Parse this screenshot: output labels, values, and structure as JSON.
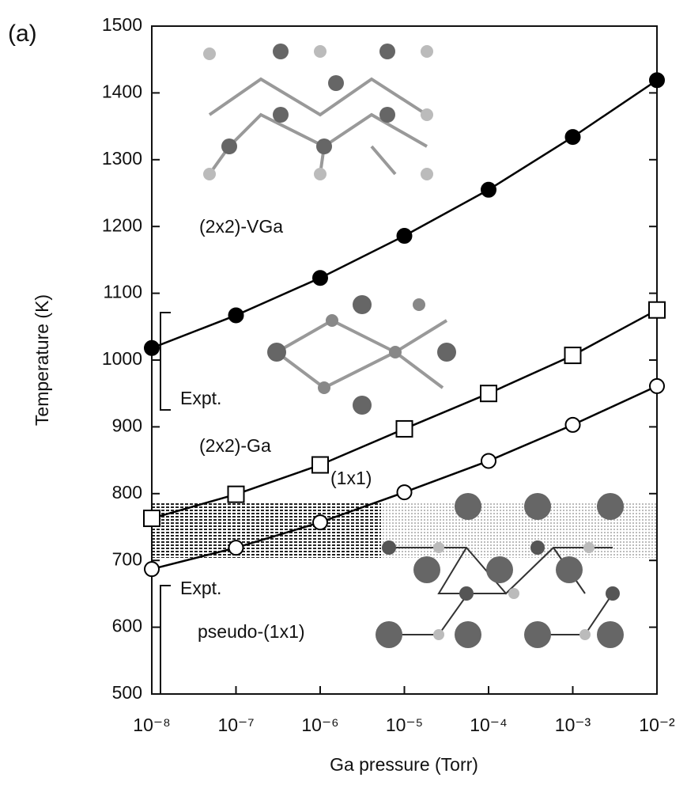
{
  "chart_data": {
    "type": "line",
    "panel_label": "(a)",
    "xlabel": "Ga pressure (Torr)",
    "ylabel": "Temperature (K)",
    "xscale": "log",
    "x": [
      1e-08,
      1e-07,
      1e-06,
      1e-05,
      0.0001,
      0.001,
      0.01
    ],
    "xlim": [
      1e-08,
      0.01
    ],
    "xticks": [
      {
        "value": 1e-08,
        "label": "10⁻⁸"
      },
      {
        "value": 1e-07,
        "label": "10⁻⁷"
      },
      {
        "value": 1e-06,
        "label": "10⁻⁶"
      },
      {
        "value": 1e-05,
        "label": "10⁻⁵"
      },
      {
        "value": 0.0001,
        "label": "10⁻⁴"
      },
      {
        "value": 0.001,
        "label": "10⁻³"
      },
      {
        "value": 0.01,
        "label": "10⁻²"
      }
    ],
    "ylim": [
      500,
      1500
    ],
    "yticks": [
      500,
      600,
      700,
      800,
      900,
      1000,
      1100,
      1200,
      1300,
      1400,
      1500
    ],
    "series": [
      {
        "name": "(2x2)-VGa",
        "color": "#000000",
        "marker": "filled-circle",
        "values": [
          1018,
          1067,
          1123,
          1186,
          1255,
          1334,
          1419
        ]
      },
      {
        "name": "(2x2)-Ga",
        "color": "#000000",
        "marker": "open-square",
        "values": [
          763,
          799,
          843,
          897,
          950,
          1007,
          1075
        ]
      },
      {
        "name": "(1x1)",
        "color": "#000000",
        "marker": "open-circle",
        "values": [
          687,
          719,
          757,
          802,
          849,
          903,
          961
        ]
      }
    ],
    "annotations": [
      "Expt.",
      "Expt.",
      "pseudo-(1x1)"
    ]
  }
}
